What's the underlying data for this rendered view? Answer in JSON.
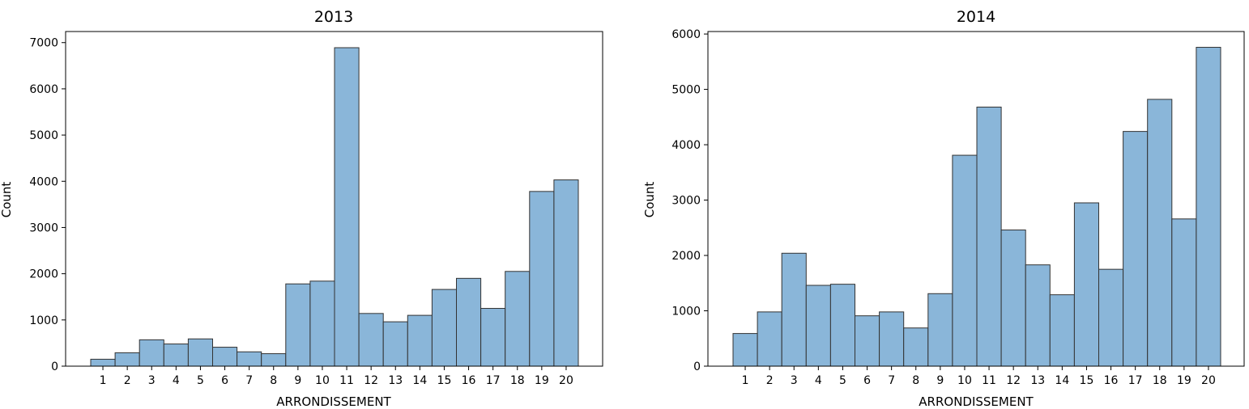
{
  "chart_data": [
    {
      "type": "bar",
      "title": "2013",
      "xlabel": "ARRONDISSEMENT",
      "ylabel": "Count",
      "categories": [
        "1",
        "2",
        "3",
        "4",
        "5",
        "6",
        "7",
        "8",
        "9",
        "10",
        "11",
        "12",
        "13",
        "14",
        "15",
        "16",
        "17",
        "18",
        "19",
        "20"
      ],
      "values": [
        150,
        290,
        570,
        480,
        590,
        410,
        310,
        270,
        1780,
        1840,
        6890,
        1140,
        960,
        1100,
        1660,
        1900,
        1250,
        2050,
        3780,
        4030
      ],
      "yticks": [
        0,
        1000,
        2000,
        3000,
        4000,
        5000,
        6000,
        7000
      ],
      "ylim": [
        0,
        7240
      ],
      "grid": false,
      "bar_color": "#8ab6d9",
      "edge_color": "#333333"
    },
    {
      "type": "bar",
      "title": "2014",
      "xlabel": "ARRONDISSEMENT",
      "ylabel": "Count",
      "categories": [
        "1",
        "2",
        "3",
        "4",
        "5",
        "6",
        "7",
        "8",
        "9",
        "10",
        "11",
        "12",
        "13",
        "14",
        "15",
        "16",
        "17",
        "18",
        "19",
        "20"
      ],
      "values": [
        590,
        980,
        2040,
        1460,
        1480,
        910,
        980,
        690,
        1310,
        3810,
        4680,
        2460,
        1830,
        1290,
        2950,
        1750,
        4240,
        4820,
        2660,
        5760
      ],
      "yticks": [
        0,
        1000,
        2000,
        3000,
        4000,
        5000,
        6000
      ],
      "ylim": [
        0,
        6045
      ],
      "grid": false,
      "bar_color": "#8ab6d9",
      "edge_color": "#333333"
    }
  ]
}
